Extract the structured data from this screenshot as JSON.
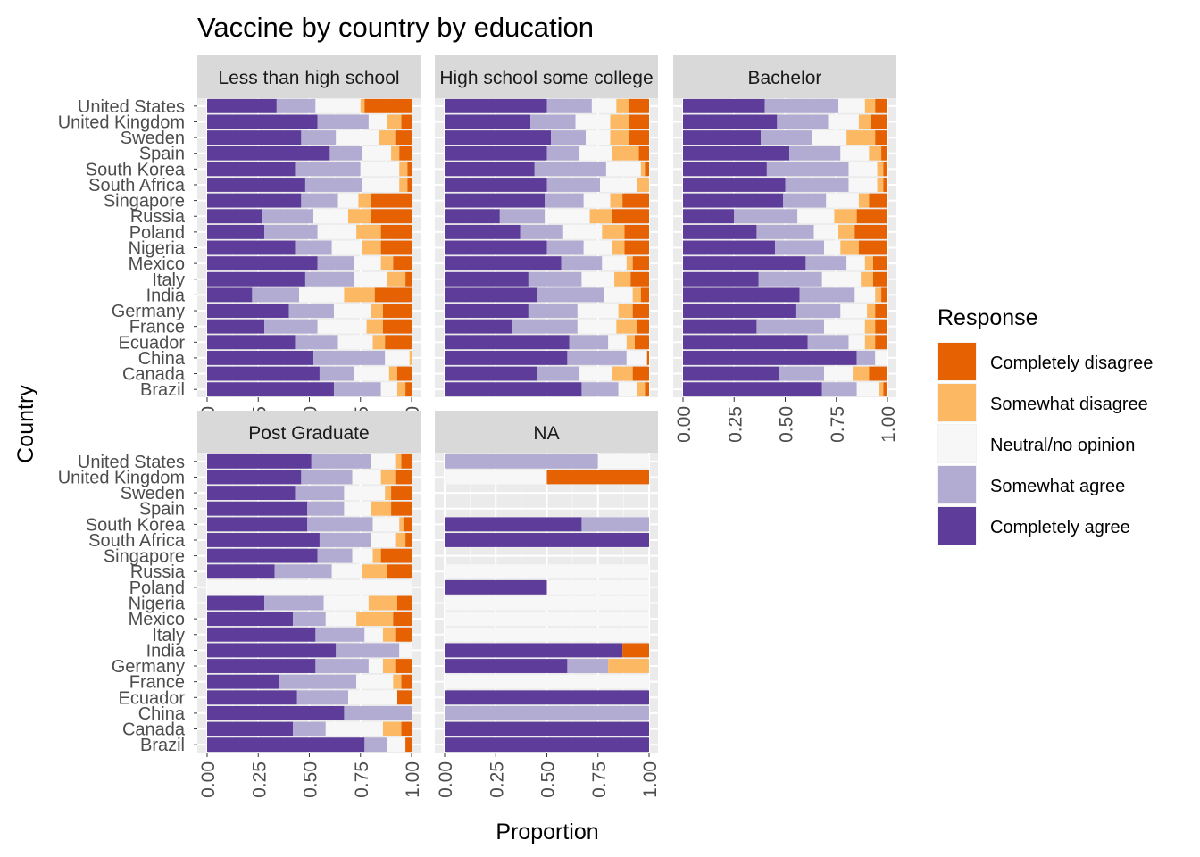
{
  "chart_data": {
    "type": "bar",
    "orientation": "horizontal",
    "stacked": true,
    "title": "Vaccine by country by education",
    "xlabel": "Proportion",
    "ylabel": "Country",
    "xlim": [
      0,
      1
    ],
    "x_ticks": [
      "0.00",
      "0.25",
      "0.50",
      "0.75",
      "1.00"
    ],
    "grid": true,
    "legend": {
      "title": "Response",
      "position": "right",
      "items": [
        "Completely disagree",
        "Somewhat disagree",
        "Neutral/no opinion",
        "Somewhat agree",
        "Completely agree"
      ]
    },
    "responses": [
      "Completely agree",
      "Somewhat agree",
      "Neutral/no opinion",
      "Somewhat disagree",
      "Completely disagree"
    ],
    "colors": {
      "Completely agree": "#5e3c99",
      "Somewhat agree": "#b2abd2",
      "Neutral/no opinion": "#f7f7f7",
      "Somewhat disagree": "#fdb863",
      "Completely disagree": "#e66101"
    },
    "countries": [
      "United States",
      "United Kingdom",
      "Sweden",
      "Spain",
      "South Korea",
      "South Africa",
      "Singapore",
      "Russia",
      "Poland",
      "Nigeria",
      "Mexico",
      "Italy",
      "India",
      "Germany",
      "France",
      "Ecuador",
      "China",
      "Canada",
      "Brazil"
    ],
    "panels": [
      {
        "facet": "Less than high school",
        "data": {
          "United States": [
            0.34,
            0.19,
            0.22,
            0.02,
            0.23
          ],
          "United Kingdom": [
            0.54,
            0.25,
            0.09,
            0.07,
            0.05
          ],
          "Sweden": [
            0.46,
            0.17,
            0.21,
            0.08,
            0.08
          ],
          "Spain": [
            0.6,
            0.16,
            0.14,
            0.04,
            0.06
          ],
          "South Korea": [
            0.43,
            0.32,
            0.19,
            0.04,
            0.02
          ],
          "South Africa": [
            0.48,
            0.28,
            0.18,
            0.04,
            0.02
          ],
          "Singapore": [
            0.46,
            0.18,
            0.1,
            0.06,
            0.2
          ],
          "Russia": [
            0.27,
            0.25,
            0.17,
            0.11,
            0.2
          ],
          "Poland": [
            0.28,
            0.26,
            0.19,
            0.12,
            0.15
          ],
          "Nigeria": [
            0.43,
            0.18,
            0.15,
            0.09,
            0.15
          ],
          "Mexico": [
            0.54,
            0.18,
            0.13,
            0.06,
            0.09
          ],
          "Italy": [
            0.48,
            0.24,
            0.16,
            0.09,
            0.03
          ],
          "India": [
            0.22,
            0.23,
            0.22,
            0.15,
            0.18
          ],
          "Germany": [
            0.4,
            0.22,
            0.18,
            0.06,
            0.14
          ],
          "France": [
            0.28,
            0.26,
            0.24,
            0.08,
            0.14
          ],
          "Ecuador": [
            0.43,
            0.21,
            0.17,
            0.06,
            0.13
          ],
          "China": [
            0.52,
            0.35,
            0.12,
            0.01,
            0.0
          ],
          "Canada": [
            0.55,
            0.17,
            0.17,
            0.04,
            0.07
          ],
          "Brazil": [
            0.62,
            0.23,
            0.08,
            0.04,
            0.03
          ]
        }
      },
      {
        "facet": "High school some college",
        "data": {
          "United States": [
            0.5,
            0.22,
            0.12,
            0.06,
            0.1
          ],
          "United Kingdom": [
            0.42,
            0.22,
            0.17,
            0.09,
            0.1
          ],
          "Sweden": [
            0.52,
            0.17,
            0.12,
            0.09,
            0.1
          ],
          "Spain": [
            0.5,
            0.16,
            0.16,
            0.13,
            0.05
          ],
          "South Korea": [
            0.44,
            0.35,
            0.17,
            0.02,
            0.02
          ],
          "South Africa": [
            0.5,
            0.26,
            0.18,
            0.06,
            0.0
          ],
          "Singapore": [
            0.49,
            0.19,
            0.13,
            0.06,
            0.13
          ],
          "Russia": [
            0.27,
            0.22,
            0.22,
            0.11,
            0.18
          ],
          "Poland": [
            0.37,
            0.21,
            0.19,
            0.11,
            0.12
          ],
          "Nigeria": [
            0.5,
            0.18,
            0.14,
            0.06,
            0.12
          ],
          "Mexico": [
            0.57,
            0.2,
            0.12,
            0.03,
            0.08
          ],
          "Italy": [
            0.41,
            0.26,
            0.16,
            0.08,
            0.09
          ],
          "India": [
            0.45,
            0.33,
            0.14,
            0.04,
            0.04
          ],
          "Germany": [
            0.41,
            0.24,
            0.2,
            0.07,
            0.08
          ],
          "France": [
            0.33,
            0.32,
            0.19,
            0.1,
            0.06
          ],
          "Ecuador": [
            0.61,
            0.19,
            0.09,
            0.04,
            0.07
          ],
          "China": [
            0.6,
            0.29,
            0.1,
            0.0,
            0.01
          ],
          "Canada": [
            0.45,
            0.21,
            0.16,
            0.1,
            0.08
          ],
          "Brazil": [
            0.67,
            0.18,
            0.09,
            0.04,
            0.02
          ]
        }
      },
      {
        "facet": "Bachelor",
        "data": {
          "United States": [
            0.4,
            0.36,
            0.13,
            0.05,
            0.06
          ],
          "United Kingdom": [
            0.46,
            0.25,
            0.15,
            0.06,
            0.08
          ],
          "Sweden": [
            0.38,
            0.25,
            0.17,
            0.14,
            0.06
          ],
          "Spain": [
            0.52,
            0.25,
            0.14,
            0.06,
            0.03
          ],
          "South Korea": [
            0.41,
            0.4,
            0.14,
            0.03,
            0.02
          ],
          "South Africa": [
            0.5,
            0.31,
            0.14,
            0.03,
            0.02
          ],
          "Singapore": [
            0.49,
            0.21,
            0.16,
            0.05,
            0.09
          ],
          "Russia": [
            0.25,
            0.31,
            0.18,
            0.11,
            0.15
          ],
          "Poland": [
            0.36,
            0.28,
            0.12,
            0.08,
            0.16
          ],
          "Nigeria": [
            0.45,
            0.24,
            0.08,
            0.09,
            0.14
          ],
          "Mexico": [
            0.6,
            0.2,
            0.09,
            0.04,
            0.07
          ],
          "Italy": [
            0.37,
            0.31,
            0.19,
            0.06,
            0.07
          ],
          "India": [
            0.57,
            0.27,
            0.1,
            0.03,
            0.03
          ],
          "Germany": [
            0.55,
            0.22,
            0.13,
            0.04,
            0.06
          ],
          "France": [
            0.36,
            0.33,
            0.2,
            0.05,
            0.06
          ],
          "Ecuador": [
            0.61,
            0.2,
            0.08,
            0.05,
            0.06
          ],
          "China": [
            0.85,
            0.09,
            0.06,
            0.0,
            0.0
          ],
          "Canada": [
            0.47,
            0.22,
            0.14,
            0.08,
            0.09
          ],
          "Brazil": [
            0.68,
            0.17,
            0.11,
            0.02,
            0.02
          ]
        }
      },
      {
        "facet": "Post Graduate",
        "data": {
          "United States": [
            0.51,
            0.29,
            0.12,
            0.03,
            0.05
          ],
          "United Kingdom": [
            0.46,
            0.25,
            0.14,
            0.07,
            0.08
          ],
          "Sweden": [
            0.43,
            0.24,
            0.2,
            0.03,
            0.1
          ],
          "Spain": [
            0.49,
            0.18,
            0.13,
            0.1,
            0.1
          ],
          "South Korea": [
            0.49,
            0.32,
            0.13,
            0.02,
            0.04
          ],
          "South Africa": [
            0.55,
            0.25,
            0.12,
            0.05,
            0.03
          ],
          "Singapore": [
            0.54,
            0.17,
            0.1,
            0.04,
            0.15
          ],
          "Russia": [
            0.33,
            0.28,
            0.15,
            0.12,
            0.12
          ],
          "Poland": [
            0.0,
            0.0,
            1.0,
            0.0,
            0.0
          ],
          "Nigeria": [
            0.28,
            0.29,
            0.22,
            0.14,
            0.07
          ],
          "Mexico": [
            0.42,
            0.16,
            0.15,
            0.18,
            0.09
          ],
          "Italy": [
            0.53,
            0.24,
            0.09,
            0.06,
            0.08
          ],
          "India": [
            0.63,
            0.31,
            0.06,
            0.0,
            0.0
          ],
          "Germany": [
            0.53,
            0.26,
            0.07,
            0.06,
            0.08
          ],
          "France": [
            0.35,
            0.38,
            0.18,
            0.04,
            0.05
          ],
          "Ecuador": [
            0.44,
            0.25,
            0.24,
            0.0,
            0.07
          ],
          "China": [
            0.67,
            0.33,
            0.0,
            0.0,
            0.0
          ],
          "Canada": [
            0.42,
            0.16,
            0.28,
            0.09,
            0.05
          ],
          "Brazil": [
            0.77,
            0.11,
            0.09,
            0.0,
            0.03
          ]
        }
      },
      {
        "facet": "NA",
        "data": {
          "United States": [
            0.0,
            0.75,
            0.25,
            0.0,
            0.0
          ],
          "United Kingdom": [
            0.0,
            0.0,
            0.5,
            0.0,
            0.5
          ],
          "Sweden": [
            0.0,
            0.0,
            0.0,
            0.0,
            0.0
          ],
          "Spain": [
            0.0,
            0.0,
            0.0,
            0.0,
            0.0
          ],
          "South Korea": [
            0.67,
            0.33,
            0.0,
            0.0,
            0.0
          ],
          "South Africa": [
            1.0,
            0.0,
            0.0,
            0.0,
            0.0
          ],
          "Singapore": [
            0.0,
            0.0,
            0.0,
            0.0,
            0.0
          ],
          "Russia": [
            0.0,
            0.0,
            1.0,
            0.0,
            0.0
          ],
          "Poland": [
            0.5,
            0.0,
            0.5,
            0.0,
            0.0
          ],
          "Nigeria": [
            0.0,
            0.0,
            1.0,
            0.0,
            0.0
          ],
          "Mexico": [
            0.0,
            0.0,
            1.0,
            0.0,
            0.0
          ],
          "Italy": [
            0.0,
            0.0,
            1.0,
            0.0,
            0.0
          ],
          "India": [
            0.87,
            0.0,
            0.0,
            0.0,
            0.13
          ],
          "Germany": [
            0.6,
            0.2,
            0.0,
            0.2,
            0.0
          ],
          "France": [
            0.0,
            0.0,
            1.0,
            0.0,
            0.0
          ],
          "Ecuador": [
            1.0,
            0.0,
            0.0,
            0.0,
            0.0
          ],
          "China": [
            0.0,
            1.0,
            0.0,
            0.0,
            0.0
          ],
          "Canada": [
            1.0,
            0.0,
            0.0,
            0.0,
            0.0
          ],
          "Brazil": [
            1.0,
            0.0,
            0.0,
            0.0,
            0.0
          ]
        }
      }
    ]
  }
}
